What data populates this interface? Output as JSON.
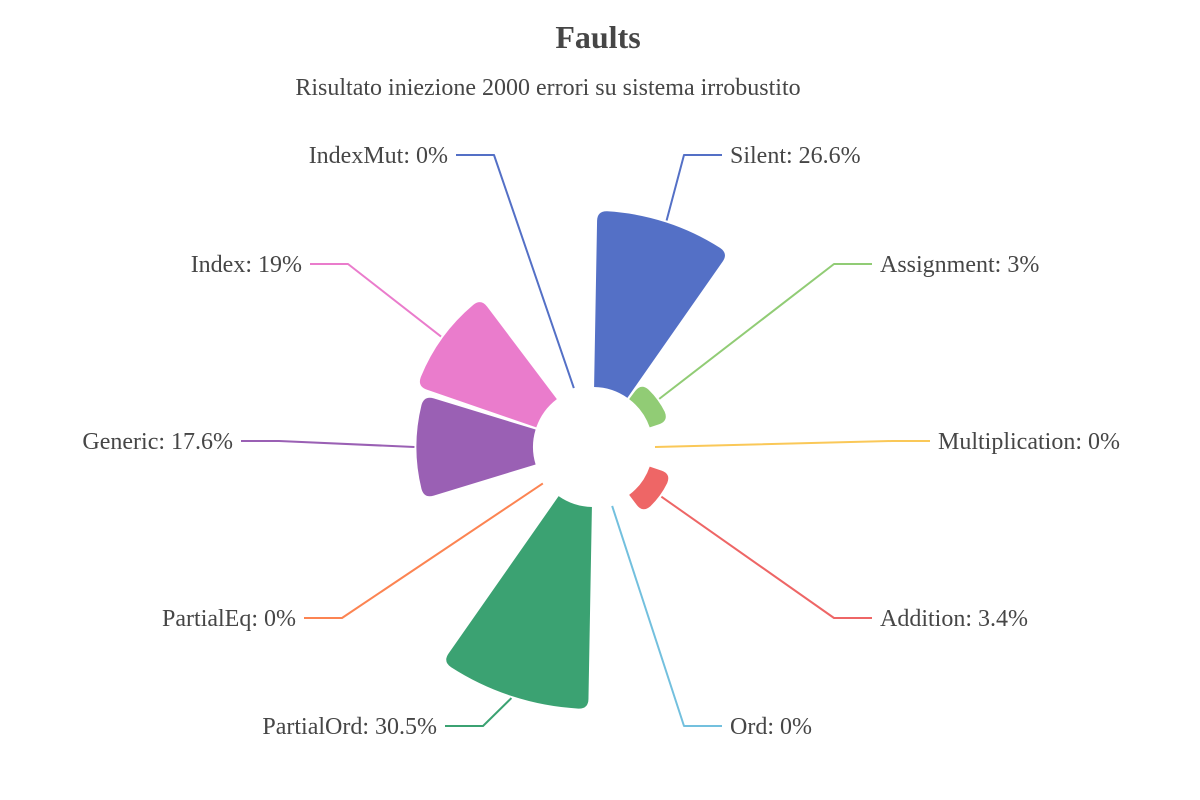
{
  "chart_data": {
    "type": "pie",
    "variant": "rose-radius",
    "title": "Faults",
    "subtitle": "Risultato iniezione 2000 errori su sistema irrobustito",
    "slices": [
      {
        "name": "Silent",
        "value": 26.6,
        "label": "Silent: 26.6%",
        "color": "#5470c6"
      },
      {
        "name": "Assignment",
        "value": 3,
        "label": "Assignment: 3%",
        "color": "#91cc75"
      },
      {
        "name": "Multiplication",
        "value": 0,
        "label": "Multiplication: 0%",
        "color": "#fac858"
      },
      {
        "name": "Addition",
        "value": 3.4,
        "label": "Addition: 3.4%",
        "color": "#ee6666"
      },
      {
        "name": "Ord",
        "value": 0,
        "label": "Ord: 0%",
        "color": "#73c0de"
      },
      {
        "name": "PartialOrd",
        "value": 30.5,
        "label": "PartialOrd: 30.5%",
        "color": "#3ba272"
      },
      {
        "name": "PartialEq",
        "value": 0,
        "label": "PartialEq: 0%",
        "color": "#fc8452"
      },
      {
        "name": "Generic",
        "value": 17.6,
        "label": "Generic: 17.6%",
        "color": "#9a60b4"
      },
      {
        "name": "Index",
        "value": 19,
        "label": "Index: 19%",
        "color": "#ea7ccc"
      },
      {
        "name": "IndexMut",
        "value": 0,
        "label": "IndexMut: 0%",
        "color": "#5470c6"
      }
    ]
  }
}
